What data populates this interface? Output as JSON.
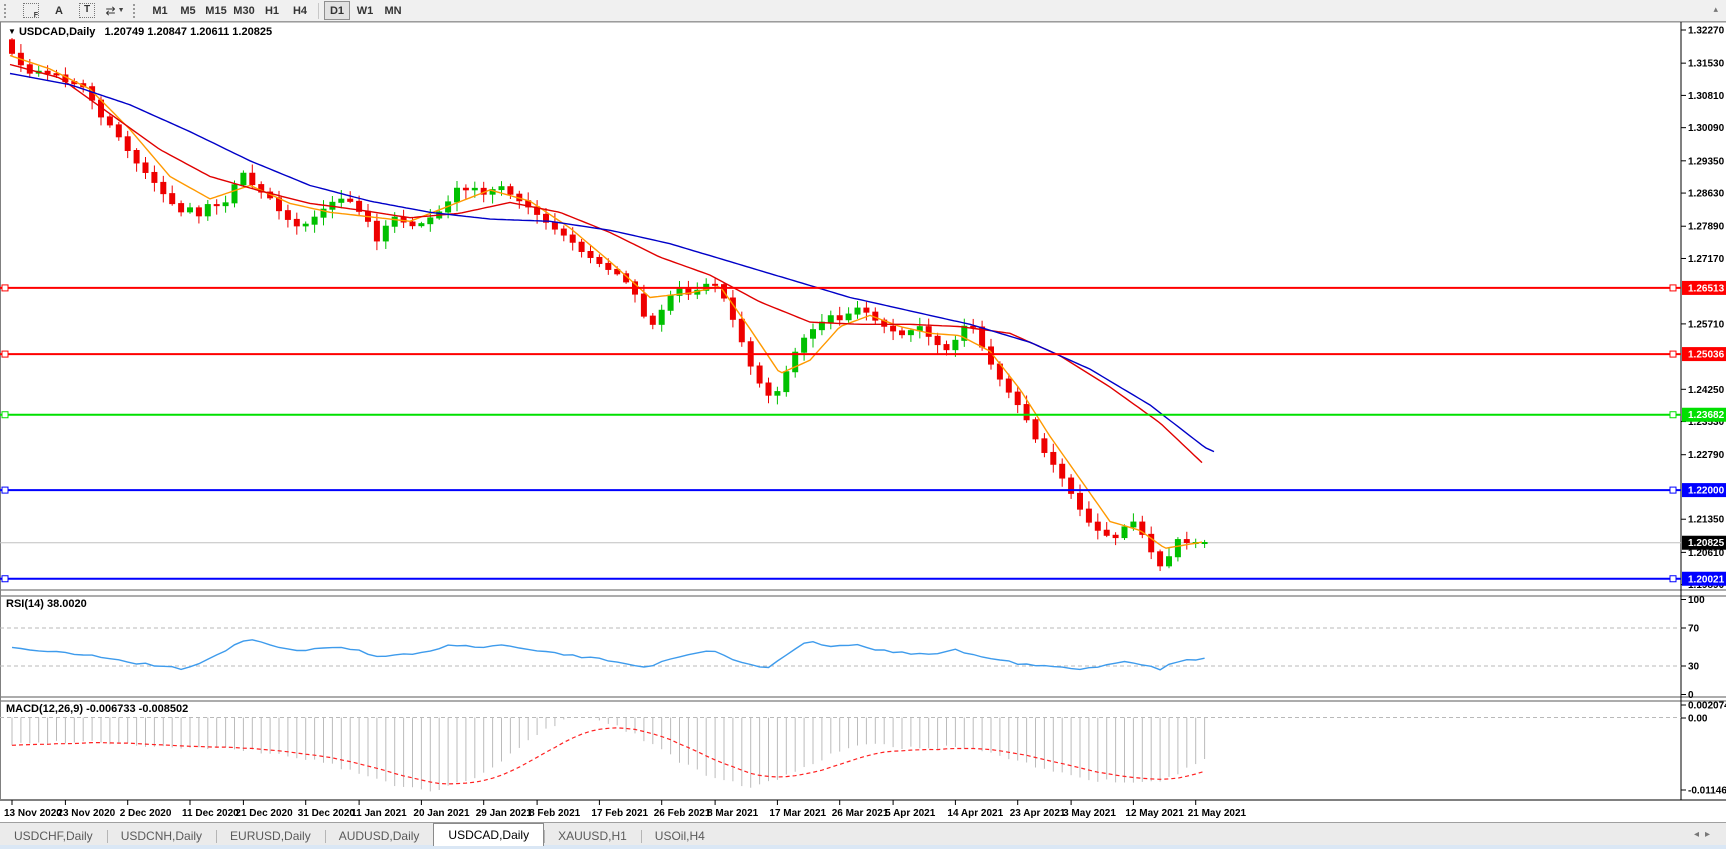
{
  "toolbar": {
    "f_label": "F",
    "font_label": "A",
    "text_label": "T",
    "timeframes": [
      "M1",
      "M5",
      "M15",
      "M30",
      "H1",
      "H4",
      "D1",
      "W1",
      "MN"
    ],
    "active_timeframe": "D1"
  },
  "chart": {
    "dropdown_glyph": "▼",
    "symbol": "USDCAD,Daily",
    "ohlc": "1.20749 1.20847 1.20611 1.20825"
  },
  "price_axis": {
    "ticks": [
      "1.32270",
      "1.31530",
      "1.30810",
      "1.30090",
      "1.29350",
      "1.28630",
      "1.27890",
      "1.27170",
      "1.25710",
      "1.24250",
      "1.23530",
      "1.22790",
      "1.21350",
      "1.20610",
      "1.19890"
    ],
    "bid_label": "1.20825"
  },
  "rsi": {
    "title": "RSI(14) 38.0020",
    "levels": [
      "100",
      "70",
      "30",
      "0"
    ],
    "level_values": [
      100,
      70,
      30,
      0
    ],
    "dashed_levels": [
      70,
      30
    ]
  },
  "macd": {
    "title": "MACD(12,26,9) -0.006733 -0.008502",
    "scale_top": "0.002074",
    "scale_zero": "0.00",
    "scale_bottom": "-0.011462"
  },
  "date_axis": {
    "labels": [
      "13 Nov 2020",
      "23 Nov 2020",
      "2 Dec 2020",
      "11 Dec 2020",
      "21 Dec 2020",
      "31 Dec 2020",
      "11 Jan 2021",
      "20 Jan 2021",
      "29 Jan 2021",
      "8 Feb 2021",
      "17 Feb 2021",
      "26 Feb 2021",
      "8 Mar 2021",
      "17 Mar 2021",
      "26 Mar 2021",
      "5 Apr 2021",
      "14 Apr 2021",
      "23 Apr 2021",
      "3 May 2021",
      "12 May 2021",
      "21 May 2021"
    ],
    "indices": [
      0,
      6,
      13,
      20,
      26,
      33,
      39,
      46,
      53,
      59,
      66,
      73,
      79,
      86,
      93,
      99,
      106,
      113,
      119,
      126,
      133
    ]
  },
  "tabs": [
    {
      "label": "USDCHF,Daily",
      "active": false
    },
    {
      "label": "USDCNH,Daily",
      "active": false
    },
    {
      "label": "EURUSD,Daily",
      "active": false
    },
    {
      "label": "AUDUSD,Daily",
      "active": false
    },
    {
      "label": "USDCAD,Daily",
      "active": true
    },
    {
      "label": "XAUUSD,H1",
      "active": false
    },
    {
      "label": "USOil,H4",
      "active": false
    }
  ],
  "tab_nav": {
    "left": "◂",
    "right": "▸"
  },
  "chart_data": {
    "type": "candlestick-with-indicators",
    "instrument": "USDCAD",
    "timeframe": "Daily",
    "candle_count": 135,
    "hlines": [
      {
        "label": "1.26513",
        "value": 1.26513,
        "color": "#FF0000"
      },
      {
        "label": "1.25036",
        "value": 1.25036,
        "color": "#FF0000"
      },
      {
        "label": "1.23682",
        "value": 1.23682,
        "color": "#00E000"
      },
      {
        "label": "1.22000",
        "value": 1.22,
        "color": "#0000FF"
      },
      {
        "label": "1.20021",
        "value": 1.20021,
        "color": "#0000FF"
      }
    ],
    "bid": {
      "label": "1.20825",
      "value": 1.20825
    },
    "price_path": [
      [
        10,
        1.3185
      ],
      [
        14,
        1.3165
      ],
      [
        20,
        1.3152
      ],
      [
        28,
        1.3128
      ],
      [
        36,
        1.314
      ],
      [
        44,
        1.3125
      ],
      [
        52,
        1.3135
      ],
      [
        60,
        1.312
      ],
      [
        70,
        1.3105
      ],
      [
        80,
        1.311
      ],
      [
        90,
        1.308
      ],
      [
        100,
        1.3035
      ],
      [
        110,
        1.3015
      ],
      [
        120,
        1.2985
      ],
      [
        130,
        1.295
      ],
      [
        140,
        1.292
      ],
      [
        150,
        1.29
      ],
      [
        160,
        1.287
      ],
      [
        170,
        1.2845
      ],
      [
        180,
        1.282
      ],
      [
        190,
        1.283
      ],
      [
        200,
        1.281
      ],
      [
        210,
        1.2845
      ],
      [
        220,
        1.283
      ],
      [
        230,
        1.285
      ],
      [
        240,
        1.292
      ],
      [
        248,
        1.289
      ],
      [
        256,
        1.2875
      ],
      [
        264,
        1.286
      ],
      [
        272,
        1.285
      ],
      [
        280,
        1.282
      ],
      [
        290,
        1.28
      ],
      [
        300,
        1.2785
      ],
      [
        310,
        1.28
      ],
      [
        320,
        1.282
      ],
      [
        330,
        1.284
      ],
      [
        340,
        1.285
      ],
      [
        350,
        1.2845
      ],
      [
        360,
        1.282
      ],
      [
        370,
        1.2795
      ],
      [
        378,
        1.275
      ],
      [
        386,
        1.279
      ],
      [
        394,
        1.281
      ],
      [
        402,
        1.28
      ],
      [
        412,
        1.279
      ],
      [
        422,
        1.2795
      ],
      [
        432,
        1.281
      ],
      [
        442,
        1.2825
      ],
      [
        452,
        1.2855
      ],
      [
        460,
        1.2885
      ],
      [
        468,
        1.2865
      ],
      [
        476,
        1.2875
      ],
      [
        484,
        1.286
      ],
      [
        492,
        1.287
      ],
      [
        500,
        1.288
      ],
      [
        508,
        1.2865
      ],
      [
        516,
        1.285
      ],
      [
        524,
        1.284
      ],
      [
        532,
        1.2825
      ],
      [
        540,
        1.281
      ],
      [
        550,
        1.279
      ],
      [
        560,
        1.2775
      ],
      [
        570,
        1.276
      ],
      [
        580,
        1.2735
      ],
      [
        590,
        1.272
      ],
      [
        600,
        1.2705
      ],
      [
        610,
        1.269
      ],
      [
        620,
        1.268
      ],
      [
        630,
        1.2655
      ],
      [
        640,
        1.262
      ],
      [
        648,
        1.2555
      ],
      [
        656,
        1.258
      ],
      [
        664,
        1.261
      ],
      [
        672,
        1.264
      ],
      [
        680,
        1.265
      ],
      [
        690,
        1.2635
      ],
      [
        700,
        1.265
      ],
      [
        710,
        1.2665
      ],
      [
        718,
        1.2655
      ],
      [
        726,
        1.262
      ],
      [
        734,
        1.2575
      ],
      [
        742,
        1.253
      ],
      [
        750,
        1.248
      ],
      [
        758,
        1.2445
      ],
      [
        766,
        1.2415
      ],
      [
        774,
        1.2405
      ],
      [
        782,
        1.244
      ],
      [
        790,
        1.2485
      ],
      [
        798,
        1.252
      ],
      [
        806,
        1.2545
      ],
      [
        814,
        1.256
      ],
      [
        822,
        1.2575
      ],
      [
        830,
        1.259
      ],
      [
        840,
        1.258
      ],
      [
        850,
        1.2595
      ],
      [
        860,
        1.261
      ],
      [
        870,
        1.259
      ],
      [
        880,
        1.257
      ],
      [
        890,
        1.256
      ],
      [
        900,
        1.2545
      ],
      [
        910,
        1.2555
      ],
      [
        920,
        1.2565
      ],
      [
        930,
        1.254
      ],
      [
        940,
        1.252
      ],
      [
        950,
        1.251
      ],
      [
        960,
        1.2555
      ],
      [
        970,
        1.258
      ],
      [
        978,
        1.254
      ],
      [
        986,
        1.25
      ],
      [
        994,
        1.247
      ],
      [
        1002,
        1.244
      ],
      [
        1010,
        1.2415
      ],
      [
        1018,
        1.239
      ],
      [
        1026,
        1.236
      ],
      [
        1034,
        1.232
      ],
      [
        1042,
        1.229
      ],
      [
        1050,
        1.227
      ],
      [
        1058,
        1.224
      ],
      [
        1066,
        1.2215
      ],
      [
        1074,
        1.218
      ],
      [
        1082,
        1.215
      ],
      [
        1090,
        1.2125
      ],
      [
        1098,
        1.211
      ],
      [
        1106,
        1.21
      ],
      [
        1114,
        1.209
      ],
      [
        1122,
        1.211
      ],
      [
        1130,
        1.2135
      ],
      [
        1138,
        1.212
      ],
      [
        1146,
        1.2085
      ],
      [
        1154,
        1.205
      ],
      [
        1162,
        1.2025
      ],
      [
        1170,
        1.2055
      ],
      [
        1178,
        1.209
      ],
      [
        1186,
        1.2083
      ],
      [
        1205,
        1.2083
      ]
    ],
    "ma_fast": [
      [
        10,
        1.317
      ],
      [
        50,
        1.314
      ],
      [
        90,
        1.3095
      ],
      [
        130,
        1.3005
      ],
      [
        170,
        1.29
      ],
      [
        210,
        1.285
      ],
      [
        250,
        1.288
      ],
      [
        290,
        1.284
      ],
      [
        330,
        1.282
      ],
      [
        370,
        1.281
      ],
      [
        410,
        1.28
      ],
      [
        450,
        1.2835
      ],
      [
        490,
        1.287
      ],
      [
        530,
        1.2845
      ],
      [
        570,
        1.2785
      ],
      [
        610,
        1.271
      ],
      [
        650,
        1.263
      ],
      [
        690,
        1.264
      ],
      [
        720,
        1.2655
      ],
      [
        750,
        1.256
      ],
      [
        780,
        1.246
      ],
      [
        810,
        1.249
      ],
      [
        840,
        1.2565
      ],
      [
        870,
        1.259
      ],
      [
        900,
        1.2565
      ],
      [
        930,
        1.255
      ],
      [
        960,
        1.2545
      ],
      [
        990,
        1.251
      ],
      [
        1020,
        1.2425
      ],
      [
        1050,
        1.232
      ],
      [
        1080,
        1.2225
      ],
      [
        1110,
        1.213
      ],
      [
        1140,
        1.211
      ],
      [
        1165,
        1.207
      ],
      [
        1205,
        1.2085
      ]
    ],
    "ma_mid": [
      [
        10,
        1.315
      ],
      [
        60,
        1.312
      ],
      [
        110,
        1.304
      ],
      [
        160,
        1.296
      ],
      [
        210,
        1.29
      ],
      [
        260,
        1.2868
      ],
      [
        310,
        1.284
      ],
      [
        360,
        1.2825
      ],
      [
        410,
        1.2808
      ],
      [
        460,
        1.2818
      ],
      [
        510,
        1.2842
      ],
      [
        560,
        1.282
      ],
      [
        610,
        1.2775
      ],
      [
        660,
        1.272
      ],
      [
        710,
        1.268
      ],
      [
        760,
        1.262
      ],
      [
        810,
        1.2575
      ],
      [
        860,
        1.257
      ],
      [
        910,
        1.257
      ],
      [
        960,
        1.2565
      ],
      [
        1010,
        1.255
      ],
      [
        1060,
        1.25
      ],
      [
        1110,
        1.243
      ],
      [
        1160,
        1.235
      ],
      [
        1205,
        1.2255
      ]
    ],
    "ma_slow": [
      [
        10,
        1.313
      ],
      [
        70,
        1.3105
      ],
      [
        130,
        1.306
      ],
      [
        190,
        1.3
      ],
      [
        250,
        1.2935
      ],
      [
        310,
        1.288
      ],
      [
        370,
        1.2845
      ],
      [
        430,
        1.282
      ],
      [
        490,
        1.2805
      ],
      [
        550,
        1.28
      ],
      [
        610,
        1.278
      ],
      [
        670,
        1.275
      ],
      [
        730,
        1.271
      ],
      [
        790,
        1.267
      ],
      [
        850,
        1.263
      ],
      [
        910,
        1.26
      ],
      [
        970,
        1.257
      ],
      [
        1030,
        1.253
      ],
      [
        1090,
        1.247
      ],
      [
        1150,
        1.239
      ],
      [
        1205,
        1.2295
      ],
      [
        1215,
        1.2285
      ]
    ],
    "rsi_value": 38.002,
    "rsi_path": [
      [
        10,
        50
      ],
      [
        40,
        46
      ],
      [
        70,
        43
      ],
      [
        100,
        40
      ],
      [
        130,
        34
      ],
      [
        160,
        30
      ],
      [
        185,
        27
      ],
      [
        210,
        38
      ],
      [
        240,
        55
      ],
      [
        255,
        57
      ],
      [
        270,
        52
      ],
      [
        300,
        46
      ],
      [
        330,
        50
      ],
      [
        360,
        46
      ],
      [
        380,
        38
      ],
      [
        400,
        42
      ],
      [
        420,
        44
      ],
      [
        450,
        52
      ],
      [
        480,
        50
      ],
      [
        510,
        52
      ],
      [
        540,
        46
      ],
      [
        570,
        41
      ],
      [
        600,
        37
      ],
      [
        630,
        33
      ],
      [
        648,
        27
      ],
      [
        665,
        36
      ],
      [
        690,
        43
      ],
      [
        715,
        46
      ],
      [
        740,
        34
      ],
      [
        770,
        28
      ],
      [
        790,
        45
      ],
      [
        810,
        57
      ],
      [
        830,
        50
      ],
      [
        855,
        52
      ],
      [
        880,
        47
      ],
      [
        905,
        44
      ],
      [
        930,
        42
      ],
      [
        955,
        47
      ],
      [
        980,
        40
      ],
      [
        1005,
        35
      ],
      [
        1030,
        31
      ],
      [
        1055,
        29
      ],
      [
        1080,
        26
      ],
      [
        1105,
        30
      ],
      [
        1125,
        36
      ],
      [
        1145,
        31
      ],
      [
        1160,
        27
      ],
      [
        1175,
        34
      ],
      [
        1205,
        38
      ]
    ],
    "macd_value": -0.006733,
    "macd_signal_value": -0.008502,
    "macd_hist": [
      [
        10,
        -0.0042
      ],
      [
        40,
        -0.004
      ],
      [
        80,
        -0.0036
      ],
      [
        120,
        -0.004
      ],
      [
        160,
        -0.0046
      ],
      [
        200,
        -0.0048
      ],
      [
        240,
        -0.005
      ],
      [
        280,
        -0.0058
      ],
      [
        320,
        -0.0068
      ],
      [
        360,
        -0.0088
      ],
      [
        400,
        -0.0108
      ],
      [
        430,
        -0.0113
      ],
      [
        460,
        -0.0103
      ],
      [
        490,
        -0.0083
      ],
      [
        520,
        -0.0045
      ],
      [
        550,
        -0.0015
      ],
      [
        575,
        0.0004
      ],
      [
        600,
        -0.0004
      ],
      [
        630,
        -0.0022
      ],
      [
        660,
        -0.0048
      ],
      [
        690,
        -0.0078
      ],
      [
        720,
        -0.0098
      ],
      [
        750,
        -0.0107
      ],
      [
        780,
        -0.0096
      ],
      [
        810,
        -0.0072
      ],
      [
        840,
        -0.0052
      ],
      [
        870,
        -0.0042
      ],
      [
        900,
        -0.0046
      ],
      [
        930,
        -0.005
      ],
      [
        960,
        -0.0044
      ],
      [
        990,
        -0.0054
      ],
      [
        1020,
        -0.0068
      ],
      [
        1050,
        -0.0083
      ],
      [
        1080,
        -0.0094
      ],
      [
        1110,
        -0.01
      ],
      [
        1140,
        -0.0103
      ],
      [
        1165,
        -0.0097
      ],
      [
        1205,
        -0.0067
      ]
    ],
    "colors": {
      "up": "#00C000",
      "down": "#EE0000",
      "ma_fast": "#FF9900",
      "ma_mid": "#E00000",
      "ma_slow": "#0000C8",
      "rsi": "#3E9BEC",
      "macd_hist": "#BBBBBB",
      "macd_signal": "#FF2222",
      "level_dash": "#B9B9B9",
      "bid_line": "#C0C0C0",
      "bid_box": "#000000"
    }
  }
}
